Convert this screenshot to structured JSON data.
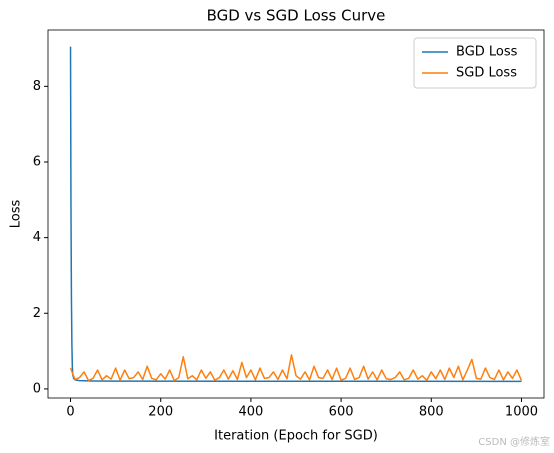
{
  "chart_data": {
    "type": "line",
    "title": "BGD vs SGD Loss Curve",
    "x_label": "Iteration (Epoch for SGD)",
    "y_label": "Loss",
    "xlim": [
      -49.95,
      1049.95
    ],
    "ylim": [
      -0.24,
      9.49
    ],
    "xticks": [
      0,
      200,
      400,
      600,
      800,
      1000
    ],
    "yticks": [
      0,
      2,
      4,
      6,
      8
    ],
    "legend": "upper right",
    "grid": false,
    "series": [
      {
        "name": "BGD Loss",
        "color": "#1f77b4",
        "x": [
          0,
          1,
          2,
          3,
          4,
          5,
          7,
          10,
          20,
          50,
          100,
          1000
        ],
        "values": [
          9.05,
          4.8,
          2.4,
          1.2,
          0.6,
          0.38,
          0.28,
          0.24,
          0.22,
          0.21,
          0.205,
          0.2
        ]
      },
      {
        "name": "SGD Loss",
        "color": "#ff7f0e",
        "x": [
          0,
          10,
          20,
          30,
          40,
          50,
          60,
          70,
          80,
          90,
          100,
          110,
          120,
          130,
          140,
          150,
          160,
          170,
          180,
          190,
          200,
          210,
          220,
          230,
          240,
          250,
          260,
          270,
          280,
          290,
          300,
          310,
          320,
          330,
          340,
          350,
          360,
          370,
          380,
          390,
          400,
          410,
          420,
          430,
          440,
          450,
          460,
          470,
          480,
          490,
          500,
          510,
          520,
          530,
          540,
          550,
          560,
          570,
          580,
          590,
          600,
          610,
          620,
          630,
          640,
          650,
          660,
          670,
          680,
          690,
          700,
          710,
          720,
          730,
          740,
          750,
          760,
          770,
          780,
          790,
          800,
          810,
          820,
          830,
          840,
          850,
          860,
          870,
          880,
          890,
          900,
          910,
          920,
          930,
          940,
          950,
          960,
          970,
          980,
          990,
          1000
        ],
        "values": [
          0.55,
          0.25,
          0.3,
          0.45,
          0.22,
          0.28,
          0.5,
          0.24,
          0.35,
          0.26,
          0.55,
          0.23,
          0.5,
          0.27,
          0.3,
          0.45,
          0.25,
          0.6,
          0.28,
          0.24,
          0.4,
          0.26,
          0.5,
          0.22,
          0.3,
          0.85,
          0.27,
          0.35,
          0.24,
          0.5,
          0.28,
          0.45,
          0.23,
          0.3,
          0.5,
          0.26,
          0.48,
          0.25,
          0.7,
          0.3,
          0.5,
          0.24,
          0.55,
          0.28,
          0.3,
          0.45,
          0.25,
          0.5,
          0.27,
          0.9,
          0.35,
          0.26,
          0.45,
          0.24,
          0.6,
          0.3,
          0.28,
          0.5,
          0.25,
          0.55,
          0.23,
          0.28,
          0.55,
          0.25,
          0.3,
          0.6,
          0.26,
          0.45,
          0.24,
          0.5,
          0.27,
          0.25,
          0.3,
          0.45,
          0.24,
          0.28,
          0.5,
          0.26,
          0.35,
          0.23,
          0.45,
          0.27,
          0.5,
          0.25,
          0.55,
          0.3,
          0.6,
          0.24,
          0.5,
          0.78,
          0.28,
          0.26,
          0.55,
          0.3,
          0.25,
          0.5,
          0.24,
          0.45,
          0.28,
          0.5,
          0.22
        ]
      }
    ]
  },
  "watermark": "CSDN @修炼室"
}
